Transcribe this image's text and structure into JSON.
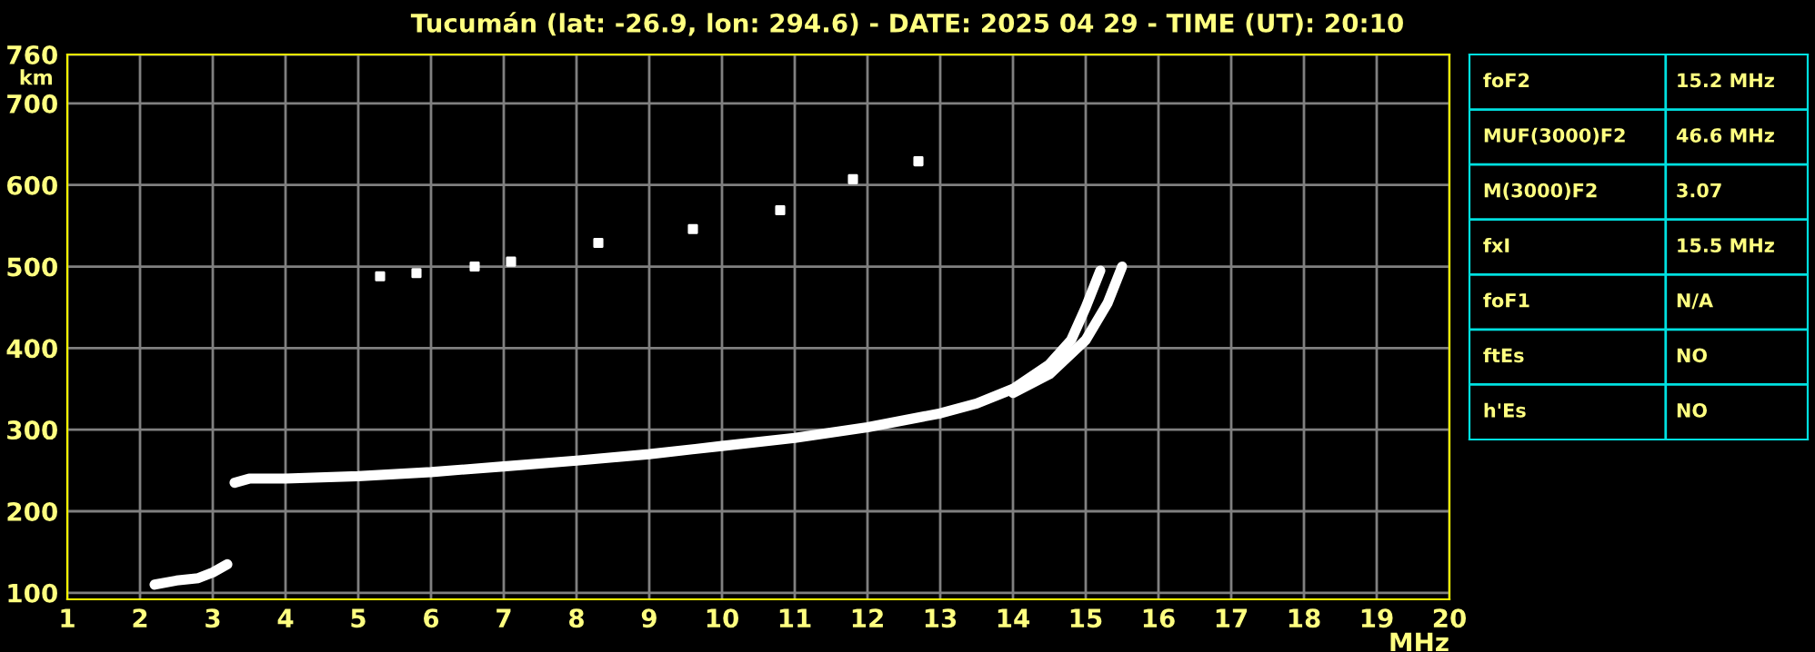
{
  "chart_data": [
    {
      "type": "line",
      "title": "Tucumán (lat: -26.9, lon: 294.6) - DATE: 2025 04 29 - TIME (UT): 20:10",
      "xlabel": "MHz",
      "ylabel": "km",
      "xlim": [
        1,
        20
      ],
      "ylim": [
        92,
        760
      ],
      "xticks": [
        1,
        2,
        3,
        4,
        5,
        6,
        7,
        8,
        9,
        10,
        11,
        12,
        13,
        14,
        15,
        16,
        17,
        18,
        19,
        20
      ],
      "yticks": [
        100,
        200,
        300,
        400,
        500,
        600,
        700,
        760
      ],
      "grid": true,
      "marker": "none",
      "line_style": "solid",
      "series": [
        {
          "color": "#ffffff",
          "x": [
            2.2,
            2.5,
            2.8,
            3.0,
            3.2
          ],
          "values": [
            110,
            115,
            118,
            125,
            135
          ]
        },
        {
          "color": "#ffffff",
          "x": [
            3.3,
            3.5,
            4,
            5,
            6,
            7,
            8,
            9,
            10,
            11,
            12,
            13,
            13.5,
            14,
            14.5,
            14.8,
            15.0,
            15.2
          ],
          "values": [
            235,
            240,
            240,
            243,
            248,
            255,
            262,
            270,
            280,
            290,
            303,
            320,
            332,
            350,
            380,
            410,
            450,
            495
          ]
        },
        {
          "color": "#ffffff",
          "x": [
            14,
            14.5,
            15,
            15.3,
            15.5
          ],
          "values": [
            345,
            368,
            410,
            455,
            500
          ]
        },
        {
          "type": "scatter",
          "marker": "square",
          "color": "#ffffff",
          "x": [
            5.3,
            5.8,
            6.6,
            7.1,
            8.3,
            9.6,
            10.8,
            11.8,
            12.7
          ],
          "values": [
            488,
            492,
            500,
            506,
            529,
            546,
            569,
            607,
            629
          ]
        }
      ]
    },
    {
      "type": "other",
      "annotations": [
        "foF2",
        "15.2 MHz",
        "MUF(3000)F2",
        "46.6 MHz",
        "M(3000)F2",
        "3.07",
        "fxI",
        "15.5 MHz",
        "foF1",
        "N/A",
        "ftEs",
        "NO",
        "h'Es",
        "NO"
      ]
    }
  ]
}
